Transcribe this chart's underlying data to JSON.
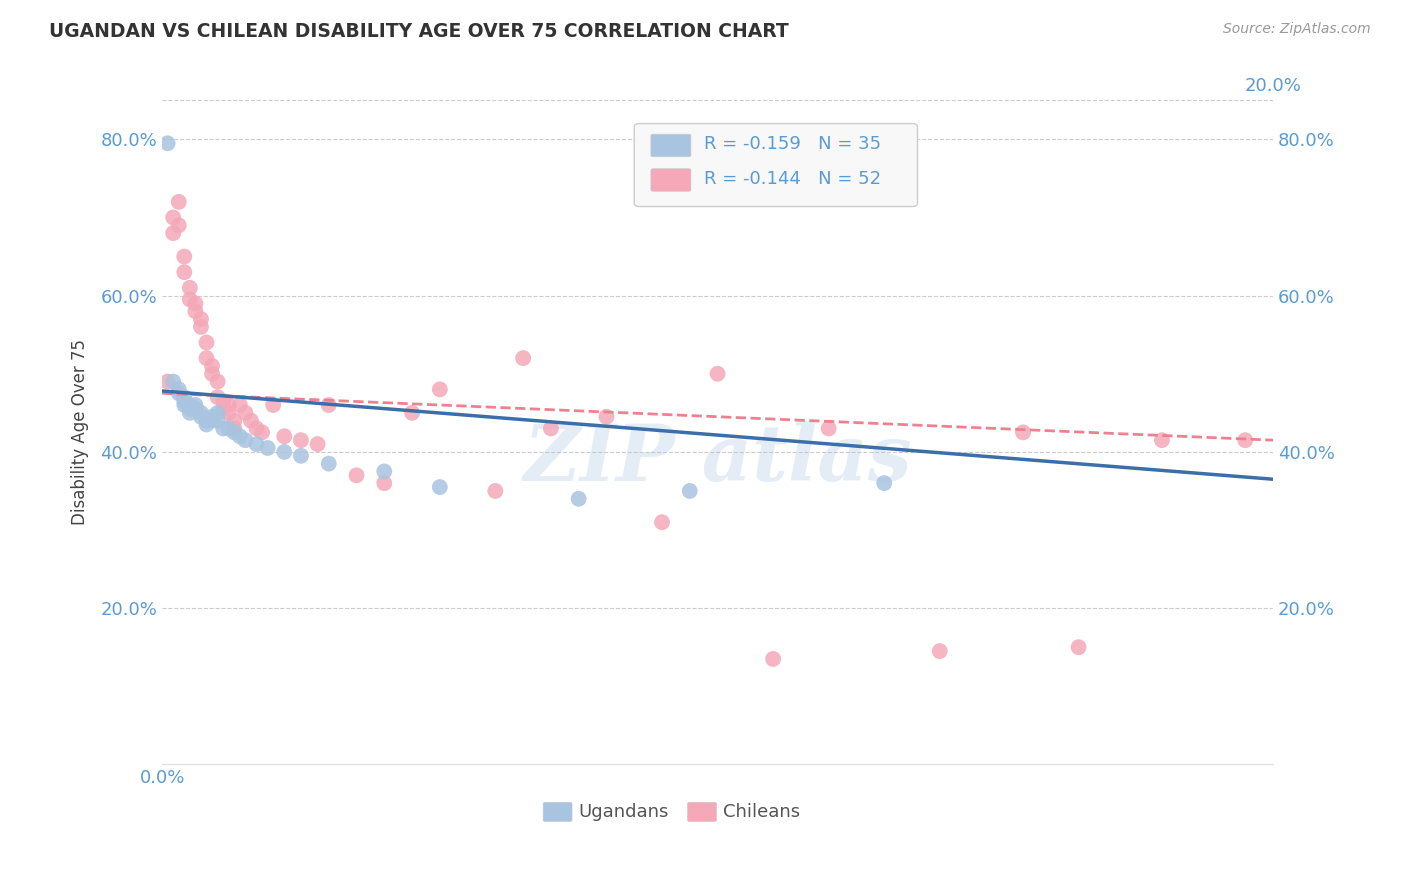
{
  "title": "UGANDAN VS CHILEAN DISABILITY AGE OVER 75 CORRELATION CHART",
  "source_text": "Source: ZipAtlas.com",
  "ylabel": "Disability Age Over 75",
  "xlim": [
    0.0,
    0.2
  ],
  "ylim": [
    0.0,
    0.85
  ],
  "xticks": [
    0.0,
    0.05,
    0.1,
    0.15,
    0.2
  ],
  "yticks": [
    0.2,
    0.4,
    0.6,
    0.8
  ],
  "background_color": "#ffffff",
  "grid_color": "#cccccc",
  "legend_R_ugandan": "-0.159",
  "legend_N_ugandan": "35",
  "legend_R_chilean": "-0.144",
  "legend_N_chilean": "52",
  "ugandan_color": "#a8c4e0",
  "chilean_color": "#f4a8b8",
  "ugandan_line_color": "#3a6faa",
  "chilean_line_color": "#f08090",
  "title_color": "#333333",
  "tick_color": "#5b9bd5",
  "ugandan_x": [
    0.001,
    0.002,
    0.003,
    0.003,
    0.004,
    0.004,
    0.004,
    0.005,
    0.005,
    0.005,
    0.006,
    0.006,
    0.007,
    0.007,
    0.008,
    0.008,
    0.009,
    0.009,
    0.01,
    0.01,
    0.011,
    0.012,
    0.013,
    0.014,
    0.015,
    0.017,
    0.019,
    0.022,
    0.025,
    0.03,
    0.04,
    0.05,
    0.075,
    0.095,
    0.13
  ],
  "ugandan_y": [
    0.795,
    0.49,
    0.475,
    0.48,
    0.47,
    0.465,
    0.46,
    0.46,
    0.455,
    0.45,
    0.455,
    0.46,
    0.45,
    0.445,
    0.44,
    0.435,
    0.445,
    0.44,
    0.45,
    0.44,
    0.43,
    0.43,
    0.425,
    0.42,
    0.415,
    0.41,
    0.405,
    0.4,
    0.395,
    0.385,
    0.375,
    0.355,
    0.34,
    0.35,
    0.36
  ],
  "chilean_x": [
    0.001,
    0.002,
    0.002,
    0.003,
    0.003,
    0.004,
    0.004,
    0.005,
    0.005,
    0.006,
    0.006,
    0.007,
    0.007,
    0.008,
    0.008,
    0.009,
    0.009,
    0.01,
    0.01,
    0.011,
    0.011,
    0.012,
    0.012,
    0.013,
    0.013,
    0.014,
    0.015,
    0.016,
    0.017,
    0.018,
    0.02,
    0.022,
    0.025,
    0.028,
    0.03,
    0.035,
    0.04,
    0.045,
    0.05,
    0.06,
    0.065,
    0.07,
    0.08,
    0.09,
    0.1,
    0.11,
    0.12,
    0.14,
    0.155,
    0.165,
    0.18,
    0.195
  ],
  "chilean_y": [
    0.49,
    0.7,
    0.68,
    0.72,
    0.69,
    0.65,
    0.63,
    0.61,
    0.595,
    0.59,
    0.58,
    0.57,
    0.56,
    0.54,
    0.52,
    0.51,
    0.5,
    0.49,
    0.47,
    0.465,
    0.455,
    0.46,
    0.45,
    0.44,
    0.43,
    0.46,
    0.45,
    0.44,
    0.43,
    0.425,
    0.46,
    0.42,
    0.415,
    0.41,
    0.46,
    0.37,
    0.36,
    0.45,
    0.48,
    0.35,
    0.52,
    0.43,
    0.445,
    0.31,
    0.5,
    0.135,
    0.43,
    0.145,
    0.425,
    0.15,
    0.415,
    0.415
  ],
  "ug_line_x0": 0.0,
  "ug_line_y0": 0.478,
  "ug_line_x1": 0.2,
  "ug_line_y1": 0.365,
  "ch_line_x0": 0.0,
  "ch_line_y0": 0.475,
  "ch_line_x1": 0.2,
  "ch_line_y1": 0.415
}
